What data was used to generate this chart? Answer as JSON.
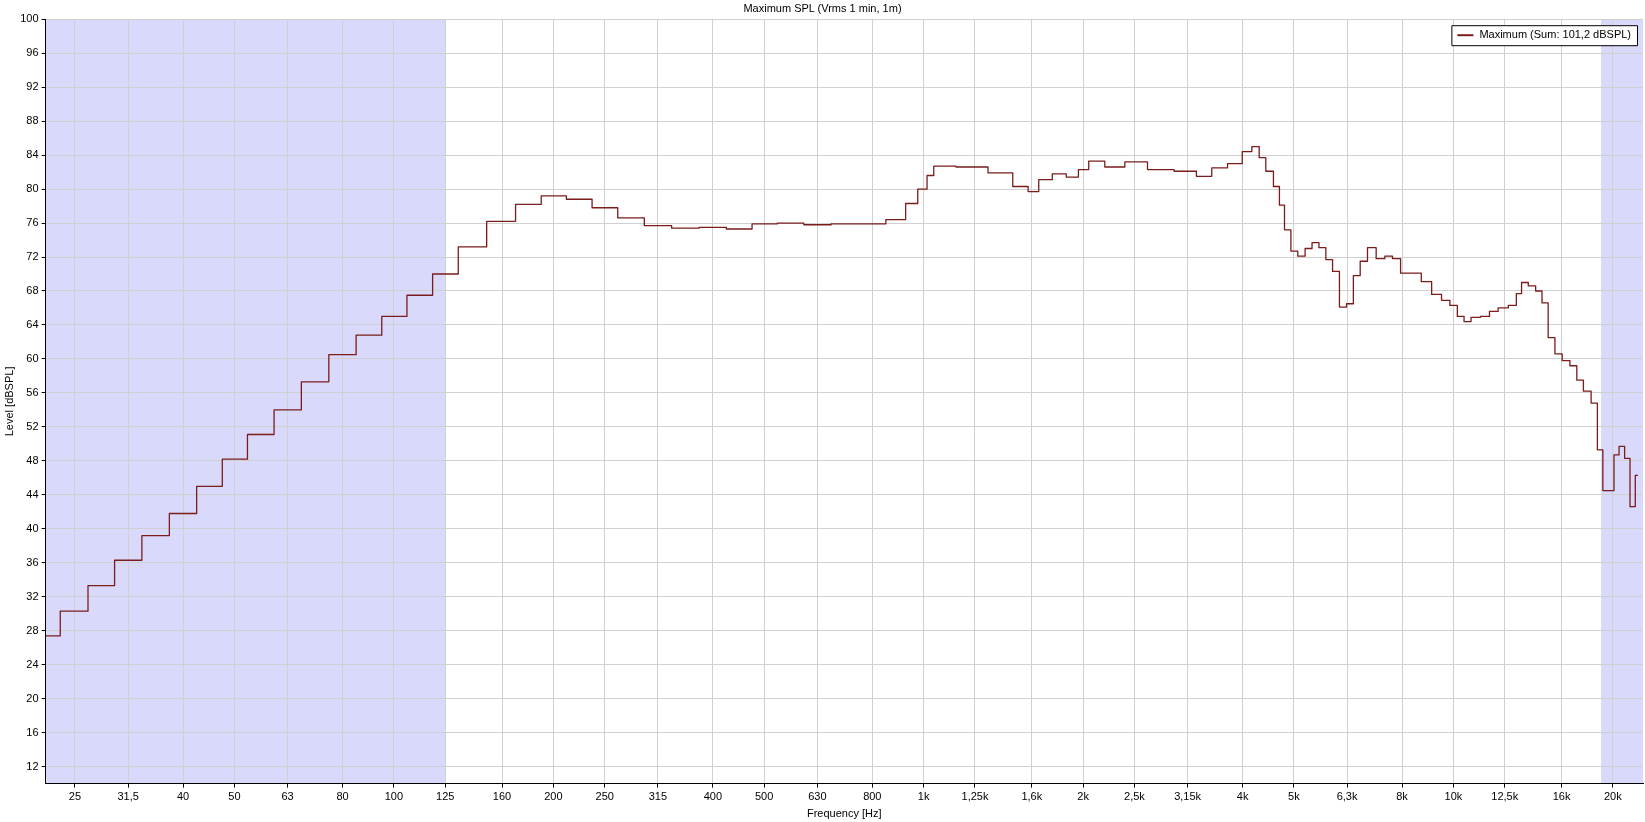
{
  "chart_data": {
    "type": "step",
    "title": "Maximum SPL (Vrms 1 min, 1m)",
    "xlabel": "Frequency [Hz]",
    "ylabel": "Level [dBSPL]",
    "log": "x",
    "grid": true,
    "legend": "top right",
    "marker": "none",
    "line_style": "solid",
    "xlim": [
      22,
      22800
    ],
    "ylim": [
      10,
      100
    ],
    "xticks": [
      25,
      {
        "value": 31.5,
        "label": "31,5"
      },
      40,
      50,
      63,
      80,
      100,
      125,
      160,
      200,
      250,
      315,
      400,
      500,
      630,
      800,
      {
        "value": 1000,
        "label": "1k"
      },
      {
        "value": 1250,
        "label": "1,25k"
      },
      {
        "value": 1600,
        "label": "1,6k"
      },
      {
        "value": 2000,
        "label": "2k"
      },
      {
        "value": 2500,
        "label": "2,5k"
      },
      {
        "value": 3150,
        "label": "3,15k"
      },
      {
        "value": 4000,
        "label": "4k"
      },
      {
        "value": 5000,
        "label": "5k"
      },
      {
        "value": 6300,
        "label": "6,3k"
      },
      {
        "value": 8000,
        "label": "8k"
      },
      {
        "value": 10000,
        "label": "10k"
      },
      {
        "value": 12500,
        "label": "12,5k"
      },
      {
        "value": 16000,
        "label": "16k"
      },
      {
        "value": 20000,
        "label": "20k"
      }
    ],
    "yticks": [
      12,
      16,
      20,
      24,
      28,
      32,
      36,
      40,
      44,
      48,
      52,
      56,
      60,
      64,
      68,
      72,
      76,
      80,
      84,
      88,
      92,
      96,
      100
    ],
    "bands": [
      {
        "axis": "x",
        "from": 22,
        "to": 125,
        "color": "#d9d9fb"
      },
      {
        "axis": "x",
        "from": 19000,
        "to": 22800,
        "color": "#d9d9fb"
      }
    ],
    "series": [
      {
        "name": "Maximum (Sum: 101,2 dBSPL)",
        "color": "#7b1c1c",
        "x": [
          22,
          25,
          28,
          31.5,
          35.5,
          40,
          45,
          50,
          56,
          63,
          71,
          80,
          90,
          100,
          112,
          125,
          140,
          160,
          180,
          200,
          224,
          250,
          280,
          315,
          355,
          400,
          450,
          500,
          560,
          630,
          710,
          800,
          900,
          950,
          1000,
          1030,
          1060,
          1250,
          1400,
          1550,
          1600,
          1700,
          1800,
          1920,
          2000,
          2100,
          2300,
          2500,
          2800,
          3150,
          3400,
          3600,
          3900,
          4090,
          4240,
          4360,
          4490,
          4660,
          4730,
          4870,
          5000,
          5170,
          5330,
          5490,
          5660,
          5830,
          6000,
          6190,
          6380,
          6570,
          6770,
          7000,
          7300,
          7550,
          7800,
          8100,
          8500,
          8900,
          9300,
          9700,
          10000,
          10350,
          10600,
          11000,
          11500,
          11900,
          12400,
          13000,
          13300,
          13600,
          14100,
          14500,
          14900,
          15300,
          15800,
          16300,
          16900,
          17300,
          17900,
          18500,
          18900,
          19400,
          19900,
          20300,
          20800,
          21300,
          21800,
          22300
        ],
        "values": [
          27.4,
          30.3,
          33.3,
          36.3,
          39.2,
          41.8,
          45.0,
          48.2,
          51.1,
          54.0,
          57.3,
          60.5,
          62.8,
          65.0,
          67.5,
          70.0,
          73.2,
          76.2,
          78.2,
          79.2,
          78.8,
          77.8,
          76.6,
          75.7,
          75.4,
          75.5,
          75.3,
          75.9,
          76.0,
          75.8,
          75.9,
          75.9,
          76.4,
          78.3,
          80.0,
          81.6,
          82.7,
          82.6,
          81.9,
          80.3,
          79.7,
          81.1,
          81.8,
          81.4,
          82.3,
          83.3,
          82.6,
          83.2,
          82.3,
          82.1,
          81.5,
          82.5,
          83.0,
          84.4,
          85.0,
          83.7,
          82.1,
          80.3,
          78.1,
          75.2,
          72.7,
          72.1,
          73.0,
          73.7,
          73.1,
          71.7,
          70.3,
          66.1,
          66.5,
          69.8,
          71.5,
          73.1,
          71.8,
          72.1,
          71.8,
          70.1,
          70.1,
          69.1,
          67.6,
          66.9,
          66.3,
          65.0,
          64.4,
          64.9,
          65.0,
          65.6,
          66.0,
          66.3,
          67.7,
          69.0,
          68.6,
          68.0,
          66.6,
          62.5,
          60.6,
          59.8,
          59.2,
          57.5,
          56.2,
          54.8,
          49.3,
          44.5,
          44.5,
          48.7,
          49.7,
          48.3,
          42.6,
          46.3
        ]
      }
    ]
  }
}
